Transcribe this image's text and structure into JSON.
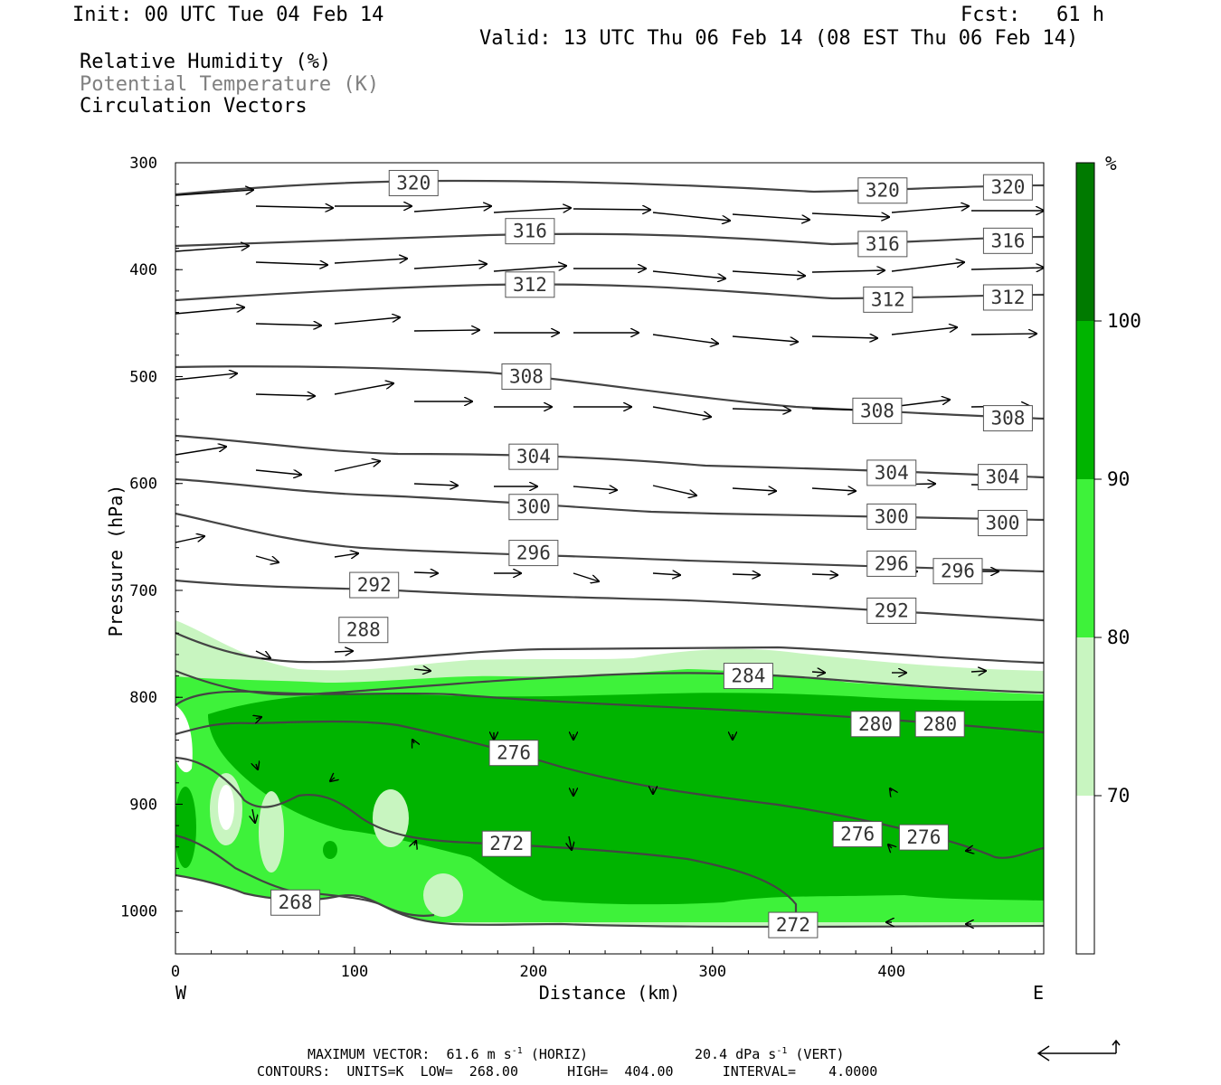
{
  "header": {
    "init": "Init: 00 UTC Tue 04 Feb 14",
    "fcst": "Fcst:   61 h",
    "valid": "Valid: 13 UTC Thu 06 Feb 14 (08 EST Thu 06 Feb 14)"
  },
  "legend": {
    "rh": "Relative Humidity (%)",
    "theta": "Potential Temperature (K)",
    "vectors": "Circulation Vectors"
  },
  "footer": {
    "max_vector": "MAXIMUM VECTOR:  61.6 m s",
    "horiz": "(HORIZ)",
    "vert_val": "20.4 dPa s",
    "vert": "(VERT)",
    "exp": "-1",
    "contours": "CONTOURS:  UNITS=K  LOW=  268.00      HIGH=  404.00      INTERVAL=    4.0000"
  },
  "colors": {
    "rh70": "#c8f5c0",
    "rh80": "#3ef23a",
    "rh90": "#00b400",
    "rh100": "#007a00",
    "contour": "#444444"
  },
  "chart_data": {
    "type": "cross-section",
    "xlabel": "Distance (km)",
    "ylabel": "Pressure (hPa)",
    "xlim": [
      0,
      485
    ],
    "ylim": [
      1040,
      300
    ],
    "xticks": [
      "0",
      "100",
      "200",
      "300",
      "400"
    ],
    "yticks": [
      "300",
      "400",
      "500",
      "600",
      "700",
      "800",
      "900",
      "1000"
    ],
    "x_left_label": "W",
    "x_right_label": "E",
    "colorbar": {
      "unit": "%",
      "levels": [
        "70",
        "80",
        "90",
        "100"
      ]
    },
    "contour_labels": [
      {
        "value": "320",
        "x": 133,
        "p": 319
      },
      {
        "value": "320",
        "x": 395,
        "p": 326
      },
      {
        "value": "320",
        "x": 465,
        "p": 323
      },
      {
        "value": "316",
        "x": 198,
        "p": 364
      },
      {
        "value": "316",
        "x": 395,
        "p": 376
      },
      {
        "value": "316",
        "x": 465,
        "p": 373
      },
      {
        "value": "312",
        "x": 198,
        "p": 414
      },
      {
        "value": "312",
        "x": 398,
        "p": 428
      },
      {
        "value": "312",
        "x": 465,
        "p": 426
      },
      {
        "value": "308",
        "x": 196,
        "p": 500
      },
      {
        "value": "308",
        "x": 392,
        "p": 532
      },
      {
        "value": "308",
        "x": 465,
        "p": 539
      },
      {
        "value": "304",
        "x": 200,
        "p": 575
      },
      {
        "value": "304",
        "x": 400,
        "p": 590
      },
      {
        "value": "304",
        "x": 462,
        "p": 594
      },
      {
        "value": "300",
        "x": 200,
        "p": 622
      },
      {
        "value": "300",
        "x": 400,
        "p": 631
      },
      {
        "value": "300",
        "x": 462,
        "p": 637
      },
      {
        "value": "296",
        "x": 200,
        "p": 665
      },
      {
        "value": "296",
        "x": 400,
        "p": 675
      },
      {
        "value": "296",
        "x": 437,
        "p": 682
      },
      {
        "value": "292",
        "x": 111,
        "p": 695
      },
      {
        "value": "292",
        "x": 400,
        "p": 719
      },
      {
        "value": "288",
        "x": 105,
        "p": 737
      },
      {
        "value": "284",
        "x": 320,
        "p": 780
      },
      {
        "value": "280",
        "x": 391,
        "p": 825
      },
      {
        "value": "280",
        "x": 427,
        "p": 825
      },
      {
        "value": "276",
        "x": 189,
        "p": 852
      },
      {
        "value": "276",
        "x": 381,
        "p": 928
      },
      {
        "value": "276",
        "x": 418,
        "p": 931
      },
      {
        "value": "272",
        "x": 185,
        "p": 937
      },
      {
        "value": "272",
        "x": 345,
        "p": 1013
      },
      {
        "value": "268",
        "x": 67,
        "p": 992
      }
    ]
  }
}
